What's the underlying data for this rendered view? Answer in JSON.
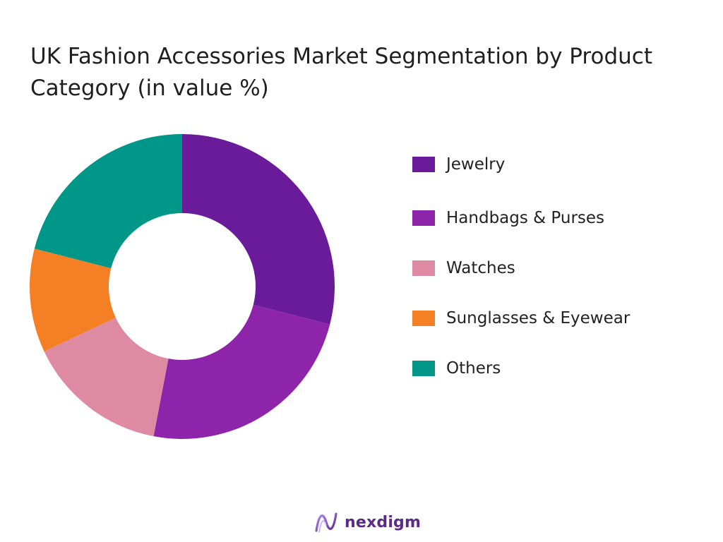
{
  "chart_data": {
    "type": "pie",
    "title": "UK Fashion Accessories Market Segmentation by Product Category (in value %)",
    "donut": true,
    "legend_position": "right",
    "categories": [
      "Jewelry",
      "Handbags & Purses",
      "Watches",
      "Sunglasses & Eyewear",
      "Others"
    ],
    "values": [
      29,
      24,
      15,
      11,
      21
    ],
    "colors": [
      "#6a1b9a",
      "#8e24aa",
      "#df8aa3",
      "#f57f25",
      "#009688"
    ]
  },
  "brand": {
    "name": "nexdigm",
    "color": "#5a2a86",
    "icon": "nexdigm-logo-icon"
  }
}
